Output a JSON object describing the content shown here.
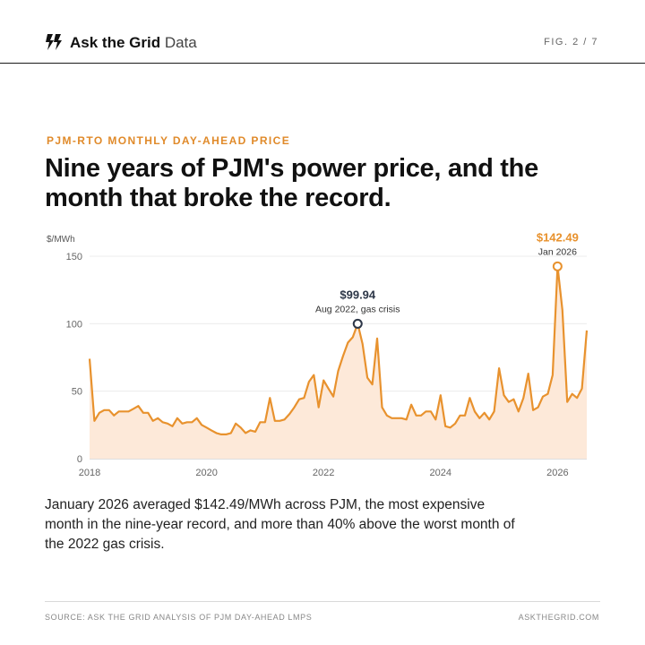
{
  "header": {
    "brand_bold": "Ask the Grid",
    "brand_light": "Data",
    "figure_label": "FIG. 2 / 7",
    "logo_icon": "lightning-bolts-icon"
  },
  "kicker": "PJM-RTO MONTHLY DAY-AHEAD PRICE",
  "headline": "Nine years of PJM's power price, and the month that broke the record.",
  "body": "January 2026 averaged $142.49/MWh across PJM, the most expensive month in the nine-year record, and more than 40% above the worst month of the 2022 gas crisis.",
  "footer": {
    "source": "SOURCE: ASK THE GRID ANALYSIS OF PJM DAY-AHEAD LMPS",
    "site": "ASKTHEGRID.COM"
  },
  "chart_data": {
    "type": "area",
    "title": "",
    "xlabel": "",
    "ylabel": "$/MWh",
    "x_start": "2018-01",
    "x_end": "2026-07",
    "xlim": [
      2018.0,
      2026.5
    ],
    "ylim": [
      0,
      150
    ],
    "y_ticks": [
      "0",
      "50",
      "100",
      "150"
    ],
    "x_ticks": [
      "2018",
      "2020",
      "2022",
      "2024",
      "2026"
    ],
    "grid": "horizontal",
    "colors": {
      "line": "#e8922e",
      "fill": "#fde9d9",
      "annotation": "#2d3748",
      "highlight": "#e8922e"
    },
    "series": [
      {
        "values": [
          74,
          28,
          34,
          36,
          36,
          32,
          35,
          35,
          35,
          37,
          39,
          34,
          34,
          28,
          30,
          27,
          26,
          24,
          30,
          26,
          27,
          27,
          30,
          25,
          23,
          21,
          19,
          18,
          18,
          19,
          26,
          23,
          19,
          21,
          20,
          27,
          27,
          45,
          28,
          28,
          29,
          33,
          38,
          44,
          45,
          57,
          62,
          38,
          58,
          52,
          46,
          65,
          76,
          86,
          90,
          99.94,
          85,
          60,
          55,
          89,
          38,
          32,
          30,
          30,
          30,
          29,
          40,
          32,
          32,
          35,
          35,
          29,
          47,
          24,
          23,
          26,
          32,
          32,
          45,
          35,
          30,
          34,
          29,
          35,
          67,
          47,
          42,
          44,
          35,
          45,
          63,
          36,
          38,
          46,
          48,
          62,
          142.49,
          110,
          42,
          48,
          45,
          52,
          95
        ]
      }
    ],
    "annotations": [
      {
        "label": "$99.94",
        "sublabel": "Aug 2022, gas crisis",
        "index": 55,
        "value": 99.94,
        "style": "dark"
      },
      {
        "label": "$142.49",
        "sublabel": "Jan 2026",
        "index": 96,
        "value": 142.49,
        "style": "highlight"
      }
    ]
  }
}
